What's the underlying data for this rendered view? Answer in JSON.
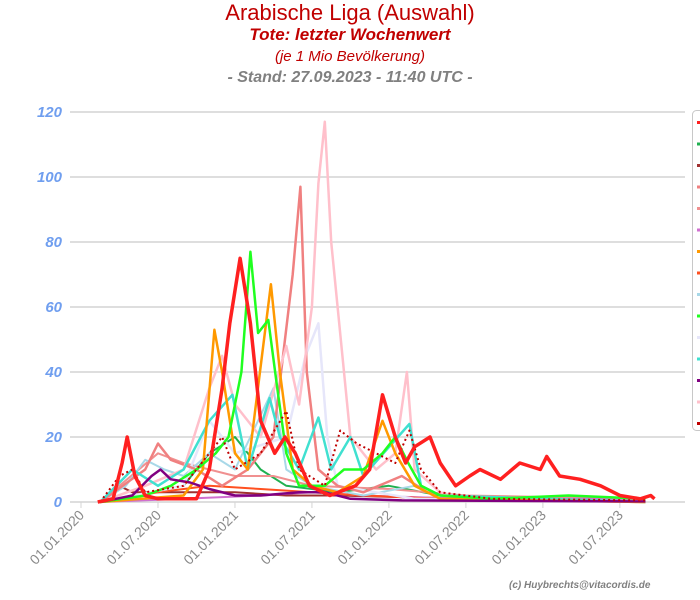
{
  "header": {
    "title": "Arabische Liga (Auswahl)",
    "subtitle": "Tote: letzter Wochenwert",
    "unit_note": "(je 1 Mio Bevölkerung)",
    "stand": "- Stand: 27.09.2023 - 11:40 UTC -"
  },
  "credit": "(c) Huybrechts@vitacordis.de",
  "chart_data": {
    "type": "line",
    "title": "Arabische Liga (Auswahl)",
    "xlabel": "",
    "ylabel": "",
    "x_unit": "months since 01.01.2020",
    "xlim": [
      0,
      47
    ],
    "ylim": [
      0,
      120
    ],
    "yticks": [
      0,
      20,
      40,
      60,
      80,
      100,
      120
    ],
    "xticks": [
      {
        "value": 0,
        "label": "01.01.2020"
      },
      {
        "value": 6,
        "label": "01.07.2020"
      },
      {
        "value": 12,
        "label": "01.01.2021"
      },
      {
        "value": 18,
        "label": "01.07.2021"
      },
      {
        "value": 24,
        "label": "01.01.2022"
      },
      {
        "value": 30,
        "label": "01.07.2022"
      },
      {
        "value": 36,
        "label": "01.01.2023"
      },
      {
        "value": 42,
        "label": "01.07.2023"
      }
    ],
    "grid": true,
    "legend_position": "right",
    "series": [
      {
        "color": "#20b050",
        "width": 2,
        "points": [
          [
            1.5,
            0
          ],
          [
            8,
            5
          ],
          [
            10,
            15
          ],
          [
            12,
            20
          ],
          [
            14,
            10
          ],
          [
            16,
            5
          ],
          [
            20,
            3
          ],
          [
            24,
            5
          ],
          [
            28,
            2
          ],
          [
            32,
            1
          ],
          [
            44,
            1
          ]
        ]
      },
      {
        "color": "#a03030",
        "width": 2,
        "points": [
          [
            1.5,
            0
          ],
          [
            3,
            5
          ],
          [
            4,
            3
          ],
          [
            8,
            3
          ],
          [
            12,
            3
          ],
          [
            16,
            2
          ],
          [
            20,
            2
          ],
          [
            30,
            1
          ],
          [
            44,
            0
          ]
        ]
      },
      {
        "color": "#f09090",
        "width": 2,
        "points": [
          [
            1.5,
            0
          ],
          [
            6,
            15
          ],
          [
            8,
            12
          ],
          [
            12,
            8
          ],
          [
            15,
            8
          ],
          [
            18,
            5
          ],
          [
            24,
            4
          ],
          [
            30,
            2
          ],
          [
            44,
            1
          ]
        ]
      },
      {
        "color": "#d070d0",
        "width": 2,
        "points": [
          [
            1.5,
            0
          ],
          [
            8,
            1
          ],
          [
            14,
            2
          ],
          [
            18,
            3
          ],
          [
            22,
            2
          ],
          [
            30,
            1
          ],
          [
            44,
            1
          ]
        ]
      },
      {
        "color": "#ff5020",
        "width": 2,
        "points": [
          [
            1.5,
            0
          ],
          [
            6,
            3
          ],
          [
            10,
            5
          ],
          [
            14,
            4
          ],
          [
            18,
            3
          ],
          [
            22,
            2
          ],
          [
            28,
            1
          ],
          [
            44,
            0
          ]
        ]
      },
      {
        "color": "#a8d8e8",
        "width": 2,
        "points": [
          [
            1.5,
            0
          ],
          [
            3.5,
            5
          ],
          [
            5,
            13
          ],
          [
            6.5,
            10
          ],
          [
            8,
            8
          ],
          [
            10,
            15
          ],
          [
            12,
            10
          ],
          [
            15,
            35
          ],
          [
            16,
            10
          ],
          [
            18,
            5
          ],
          [
            22,
            2
          ],
          [
            26,
            5
          ],
          [
            28,
            1
          ],
          [
            44,
            0
          ]
        ]
      },
      {
        "color": "#e6e6fa",
        "width": 2.5,
        "points": [
          [
            1.5,
            0
          ],
          [
            8,
            5
          ],
          [
            10,
            25
          ],
          [
            12,
            15
          ],
          [
            16,
            20
          ],
          [
            17.5,
            45
          ],
          [
            18.5,
            55
          ],
          [
            19.2,
            20
          ],
          [
            20,
            5
          ],
          [
            23,
            3
          ],
          [
            26,
            1
          ],
          [
            44,
            0
          ]
        ]
      },
      {
        "color": "#f08080",
        "width": 2.5,
        "points": [
          [
            1.5,
            0
          ],
          [
            5,
            10
          ],
          [
            6,
            18
          ],
          [
            7,
            13
          ],
          [
            9,
            10
          ],
          [
            11,
            5
          ],
          [
            13,
            10
          ],
          [
            15,
            20
          ],
          [
            16.5,
            70
          ],
          [
            17.1,
            97
          ],
          [
            17.6,
            40
          ],
          [
            18.5,
            10
          ],
          [
            20,
            5
          ],
          [
            22,
            3
          ],
          [
            25,
            8
          ],
          [
            27,
            3
          ],
          [
            30,
            1
          ],
          [
            44,
            0
          ]
        ]
      },
      {
        "color": "#ffc0cb",
        "width": 2.5,
        "points": [
          [
            1.5,
            0
          ],
          [
            5,
            5
          ],
          [
            8,
            10
          ],
          [
            10,
            35
          ],
          [
            11,
            45
          ],
          [
            12,
            30
          ],
          [
            14,
            20
          ],
          [
            16,
            48
          ],
          [
            17,
            30
          ],
          [
            18,
            60
          ],
          [
            18.5,
            98
          ],
          [
            19,
            117
          ],
          [
            19.5,
            80
          ],
          [
            20,
            60
          ],
          [
            20.5,
            40
          ],
          [
            21,
            20
          ],
          [
            23,
            10
          ],
          [
            24.5,
            15
          ],
          [
            25.4,
            40
          ],
          [
            26,
            10
          ],
          [
            28,
            3
          ],
          [
            30,
            1
          ],
          [
            44,
            0
          ]
        ]
      },
      {
        "color": "#40e0d0",
        "width": 2.5,
        "points": [
          [
            1.5,
            0
          ],
          [
            4,
            10
          ],
          [
            6,
            5
          ],
          [
            8,
            10
          ],
          [
            10,
            25
          ],
          [
            11.8,
            33
          ],
          [
            13,
            10
          ],
          [
            14.7,
            32
          ],
          [
            15.5,
            20
          ],
          [
            17,
            10
          ],
          [
            18.5,
            26
          ],
          [
            19.5,
            10
          ],
          [
            21,
            20
          ],
          [
            22,
            8
          ],
          [
            25.6,
            24
          ],
          [
            26.5,
            5
          ],
          [
            28,
            2
          ],
          [
            44,
            0
          ]
        ]
      },
      {
        "color": "#ff9900",
        "width": 2.5,
        "points": [
          [
            1.5,
            0
          ],
          [
            8,
            2
          ],
          [
            9.5,
            10
          ],
          [
            10.4,
            53
          ],
          [
            11,
            40
          ],
          [
            12,
            15
          ],
          [
            13,
            10
          ],
          [
            14.8,
            67
          ],
          [
            15.5,
            40
          ],
          [
            16.5,
            10
          ],
          [
            18,
            5
          ],
          [
            20,
            3
          ],
          [
            22,
            8
          ],
          [
            23.5,
            25
          ],
          [
            24.5,
            15
          ],
          [
            26,
            5
          ],
          [
            28,
            1
          ],
          [
            44,
            0
          ]
        ]
      },
      {
        "color": "#20ff20",
        "width": 2.5,
        "points": [
          [
            1.5,
            0
          ],
          [
            5,
            2
          ],
          [
            7,
            5
          ],
          [
            9,
            10
          ],
          [
            10.5,
            15
          ],
          [
            11.5,
            20
          ],
          [
            12.5,
            40
          ],
          [
            13.2,
            77
          ],
          [
            13.8,
            52
          ],
          [
            14.6,
            56
          ],
          [
            15.3,
            35
          ],
          [
            16,
            15
          ],
          [
            17,
            5
          ],
          [
            19,
            5
          ],
          [
            20.5,
            10
          ],
          [
            22,
            10
          ],
          [
            23.5,
            15
          ],
          [
            24.5,
            20
          ],
          [
            25.5,
            12
          ],
          [
            26.5,
            5
          ],
          [
            28,
            2
          ],
          [
            32,
            1
          ],
          [
            38,
            2
          ],
          [
            44,
            1
          ]
        ]
      },
      {
        "color": "#800080",
        "width": 2.5,
        "points": [
          [
            1.5,
            0
          ],
          [
            4,
            2
          ],
          [
            5.5,
            8
          ],
          [
            6.2,
            10
          ],
          [
            7,
            7
          ],
          [
            8.5,
            6
          ],
          [
            10,
            4
          ],
          [
            12,
            2
          ],
          [
            14,
            2
          ],
          [
            17,
            3
          ],
          [
            19,
            3
          ],
          [
            21,
            1
          ],
          [
            25,
            0.5
          ],
          [
            44,
            0.2
          ]
        ]
      },
      {
        "color": "#c00000",
        "width": 2,
        "dashed": true,
        "points": [
          [
            1.5,
            0
          ],
          [
            3,
            8
          ],
          [
            4,
            10
          ],
          [
            5,
            3
          ],
          [
            8,
            5
          ],
          [
            10,
            15
          ],
          [
            11,
            20
          ],
          [
            12,
            10
          ],
          [
            14,
            15
          ],
          [
            16,
            28
          ],
          [
            17,
            10
          ],
          [
            19,
            5
          ],
          [
            20.2,
            22
          ],
          [
            21.5,
            18
          ],
          [
            23,
            15
          ],
          [
            24.5,
            12
          ],
          [
            25.6,
            22
          ],
          [
            26.5,
            10
          ],
          [
            28,
            3
          ],
          [
            32,
            1
          ],
          [
            44,
            0.5
          ]
        ]
      },
      {
        "color": "#ff2020",
        "width": 3.5,
        "points": [
          [
            1.3,
            0
          ],
          [
            2.5,
            1
          ],
          [
            3.2,
            12
          ],
          [
            3.6,
            20
          ],
          [
            4.2,
            8
          ],
          [
            5,
            2
          ],
          [
            6,
            1
          ],
          [
            9,
            1
          ],
          [
            10,
            10
          ],
          [
            11,
            35
          ],
          [
            11.6,
            55
          ],
          [
            12.4,
            75
          ],
          [
            13.2,
            55
          ],
          [
            14,
            25
          ],
          [
            15.1,
            15
          ],
          [
            15.9,
            20
          ],
          [
            16.7,
            15
          ],
          [
            17.8,
            5
          ],
          [
            19.4,
            2
          ],
          [
            21.4,
            5
          ],
          [
            22.5,
            10
          ],
          [
            23.5,
            33
          ],
          [
            24.5,
            20
          ],
          [
            25.3,
            12
          ],
          [
            26,
            17
          ],
          [
            27.2,
            20
          ],
          [
            28,
            12
          ],
          [
            29.2,
            5
          ],
          [
            30.3,
            8
          ],
          [
            31.1,
            10
          ],
          [
            32.7,
            7
          ],
          [
            34.2,
            12
          ],
          [
            35.8,
            10
          ],
          [
            36.3,
            14
          ],
          [
            37.3,
            8
          ],
          [
            38.9,
            7
          ],
          [
            40.5,
            5
          ],
          [
            42,
            2
          ],
          [
            43.6,
            1
          ],
          [
            44.4,
            2
          ],
          [
            44.7,
            1
          ]
        ]
      }
    ],
    "legend_colors": [
      "#ff2020",
      "#20b050",
      "#a03030",
      "#f08080",
      "#f09090",
      "#d070d0",
      "#ff9900",
      "#ff5020",
      "#a8d8e8",
      "#20ff20",
      "#e6e6fa",
      "#40e0d0",
      "#800080",
      "#ffc0cb",
      "#c00000"
    ]
  }
}
